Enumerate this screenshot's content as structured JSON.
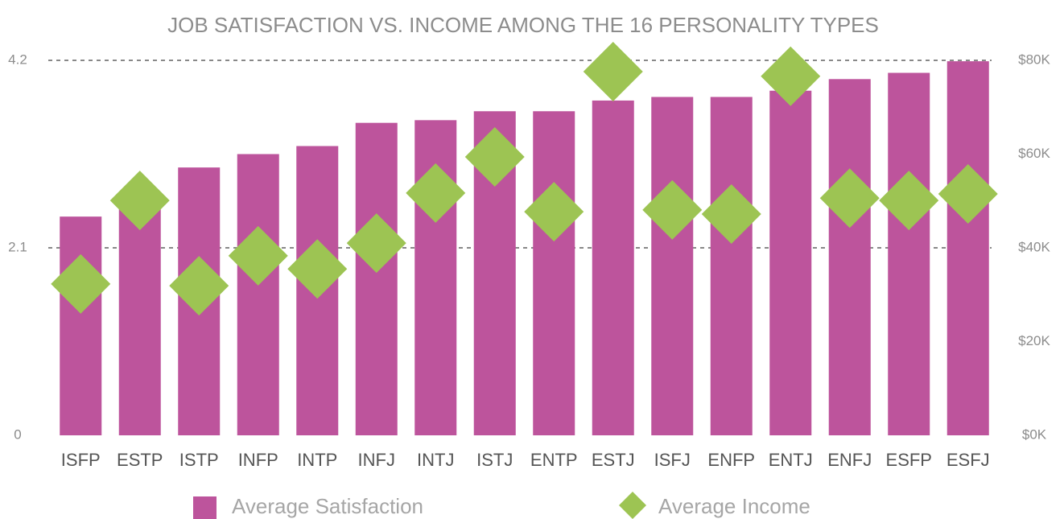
{
  "chart_data": {
    "type": "bar",
    "title": "JOB SATISFACTION VS. INCOME AMONG THE 16 PERSONALITY TYPES",
    "categories": [
      "ISFP",
      "ESTP",
      "ISTP",
      "INFP",
      "INTP",
      "INFJ",
      "INTJ",
      "ISTJ",
      "ENTP",
      "ESTJ",
      "ISFJ",
      "ENFP",
      "ENTJ",
      "ENFJ",
      "ESFP",
      "ESFJ"
    ],
    "series": [
      {
        "name": "Average Satisfaction",
        "type": "bar",
        "color": "#bd549c",
        "values": [
          2.45,
          2.55,
          3.0,
          3.15,
          3.24,
          3.5,
          3.53,
          3.63,
          3.63,
          3.75,
          3.79,
          3.79,
          3.86,
          3.99,
          4.06,
          4.19
        ]
      },
      {
        "name": "Average Income",
        "type": "scatter",
        "axis": "y2",
        "color": "#9dc453",
        "values": [
          32300,
          50100,
          31900,
          38300,
          35500,
          41000,
          51700,
          59400,
          47700,
          77600,
          48100,
          47200,
          76600,
          50600,
          50100,
          51500
        ]
      }
    ],
    "ylim": [
      0,
      4.2
    ],
    "yticks": [
      0,
      2.1,
      4.2
    ],
    "y2lim": [
      0,
      80000
    ],
    "y2ticks": [
      {
        "value": 0,
        "label": "$0K"
      },
      {
        "value": 20000,
        "label": "$20K"
      },
      {
        "value": 40000,
        "label": "$40K"
      },
      {
        "value": 60000,
        "label": "$60K"
      },
      {
        "value": 80000,
        "label": "$80K"
      }
    ],
    "grid": true,
    "legend": "bottom"
  }
}
